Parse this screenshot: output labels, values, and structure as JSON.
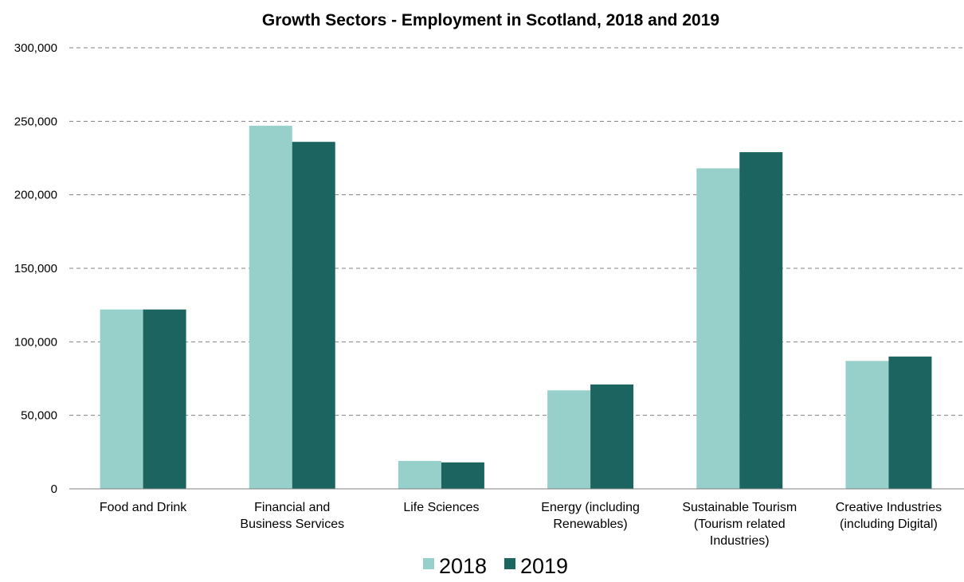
{
  "chart_data": {
    "type": "bar",
    "title": "Growth Sectors - Employment in Scotland, 2018 and 2019",
    "categories": [
      [
        "Food and Drink"
      ],
      [
        "Financial and",
        "Business Services"
      ],
      [
        "Life Sciences"
      ],
      [
        "Energy (including",
        "Renewables)"
      ],
      [
        "Sustainable Tourism",
        "(Tourism related",
        "Industries)"
      ],
      [
        "Creative Industries",
        "(including Digital)"
      ]
    ],
    "series": [
      {
        "name": "2018",
        "color": "#97d0ca",
        "values": [
          122000,
          247000,
          19000,
          67000,
          218000,
          87000
        ]
      },
      {
        "name": "2019",
        "color": "#1c645f",
        "values": [
          122000,
          236000,
          18000,
          71000,
          229000,
          90000
        ]
      }
    ],
    "ylim": [
      0,
      300000
    ],
    "yticks": [
      "0",
      "50,000",
      "100,000",
      "150,000",
      "200,000",
      "250,000",
      "300,000"
    ],
    "ytick_values": [
      0,
      50000,
      100000,
      150000,
      200000,
      250000,
      300000
    ],
    "grid": true,
    "legend": "bottom-center"
  }
}
